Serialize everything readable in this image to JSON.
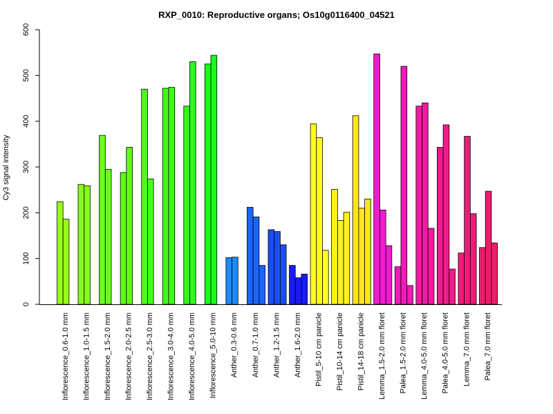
{
  "chart_data": {
    "type": "bar",
    "title": "RXP_0010: Reproductive organs; Os10g0116400_04521",
    "xlabel": "",
    "ylabel": "Cy3 signal intensity",
    "ylim": [
      0,
      600
    ],
    "yticks": [
      0,
      100,
      200,
      300,
      400,
      500,
      600
    ],
    "grid": false,
    "groups": [
      {
        "label": "Inflorescence_0.6-1.0 mm",
        "color": "#99ff1a",
        "values": [
          224,
          186
        ]
      },
      {
        "label": "Inflorescence_1.0-1.5 mm",
        "color": "#88ff1a",
        "values": [
          262,
          259
        ]
      },
      {
        "label": "Inflorescence_1.5-2.0 mm",
        "color": "#6bff1a",
        "values": [
          369,
          295
        ]
      },
      {
        "label": "Inflorescence_2.0-2.5 mm",
        "color": "#5eff1a",
        "values": [
          288,
          343
        ]
      },
      {
        "label": "Inflorescence_2.5-3.0 mm",
        "color": "#4dff1a",
        "values": [
          470,
          274
        ]
      },
      {
        "label": "Inflorescence_3.0-4.0 mm",
        "color": "#40ff1a",
        "values": [
          472,
          474
        ]
      },
      {
        "label": "Inflorescence_4.0-5.0 mm",
        "color": "#2fff1a",
        "values": [
          433,
          530
        ]
      },
      {
        "label": "Inflorescence_5.0-10 mm",
        "color": "#1aff1a",
        "values": [
          525,
          544
        ]
      },
      {
        "label": "Anther_0.3-0.6 mm",
        "color": "#1a8cff",
        "values": [
          102,
          103
        ]
      },
      {
        "label": "Anther_0.7-1.0 mm",
        "color": "#1a66ff",
        "values": [
          212,
          191,
          85
        ]
      },
      {
        "label": "Anther_1.2-1.5 mm",
        "color": "#1a4dff",
        "values": [
          163,
          159,
          130
        ]
      },
      {
        "label": "Anther_1.6-2.0 mm",
        "color": "#1a1aff",
        "values": [
          85,
          58,
          66
        ]
      },
      {
        "label": "Pistil_5-10 cm panicle",
        "color": "#ffff1a",
        "values": [
          394,
          364,
          118
        ]
      },
      {
        "label": "Pistil_10-14 cm panicle",
        "color": "#fff21a",
        "values": [
          251,
          183,
          201
        ]
      },
      {
        "label": "Pistil_14-18 cm panicle",
        "color": "#ffe61a",
        "values": [
          412,
          210,
          230
        ]
      },
      {
        "label": "Lemma_1.5-2.0 mm floret",
        "color": "#f21ad2",
        "values": [
          547,
          206,
          128
        ]
      },
      {
        "label": "Palea_1.5-2.0 mm floret",
        "color": "#f21ab8",
        "values": [
          82,
          520,
          41
        ]
      },
      {
        "label": "Lemma_4.0-5.0 mm floret",
        "color": "#f21aa0",
        "values": [
          433,
          440,
          166
        ]
      },
      {
        "label": "Palea_4.0-5.0 mm floret",
        "color": "#f21a8c",
        "values": [
          343,
          392,
          77
        ]
      },
      {
        "label": "Lemma_7.0 mm floret",
        "color": "#f21a78",
        "values": [
          112,
          367,
          198
        ]
      },
      {
        "label": "Palea_7.0 mm floret",
        "color": "#f21a6b",
        "values": [
          124,
          247,
          134
        ]
      }
    ]
  }
}
